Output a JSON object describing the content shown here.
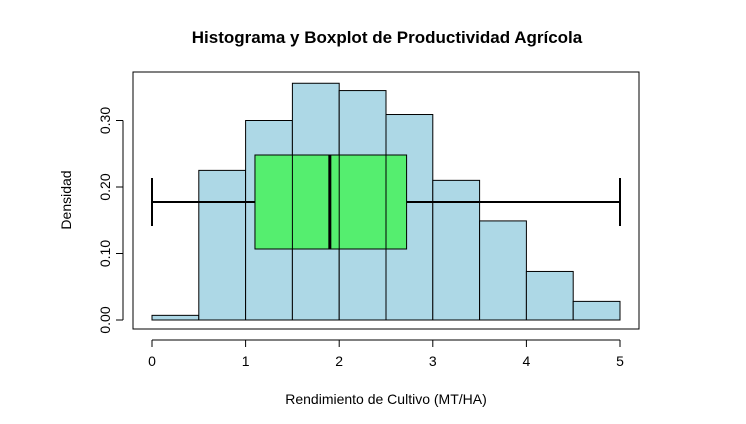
{
  "chart_data": {
    "type": "bar",
    "title": "Histograma y Boxplot de Productividad Agrícola",
    "xlabel": "Rendimiento de Cultivo (MT/HA)",
    "ylabel": "Densidad",
    "xlim": [
      0,
      5
    ],
    "ylim": [
      0,
      0.35
    ],
    "x_ticks": [
      "0",
      "1",
      "2",
      "3",
      "4",
      "5"
    ],
    "y_ticks": [
      "0.00",
      "0.10",
      "0.20",
      "0.30"
    ],
    "histogram": {
      "bin_edges": [
        0,
        0.5,
        1,
        1.5,
        2,
        2.5,
        3,
        3.5,
        4,
        4.5,
        5
      ],
      "density": [
        0.007,
        0.225,
        0.3,
        0.356,
        0.345,
        0.309,
        0.21,
        0.149,
        0.073,
        0.028
      ],
      "fill": "#add8e6",
      "stroke": "#000000"
    },
    "boxplot": {
      "min": 0,
      "q1": 1.1,
      "median": 1.9,
      "q3": 2.72,
      "max": 5,
      "fill": "#55ee6f",
      "stroke": "#000000"
    },
    "grid": false
  }
}
